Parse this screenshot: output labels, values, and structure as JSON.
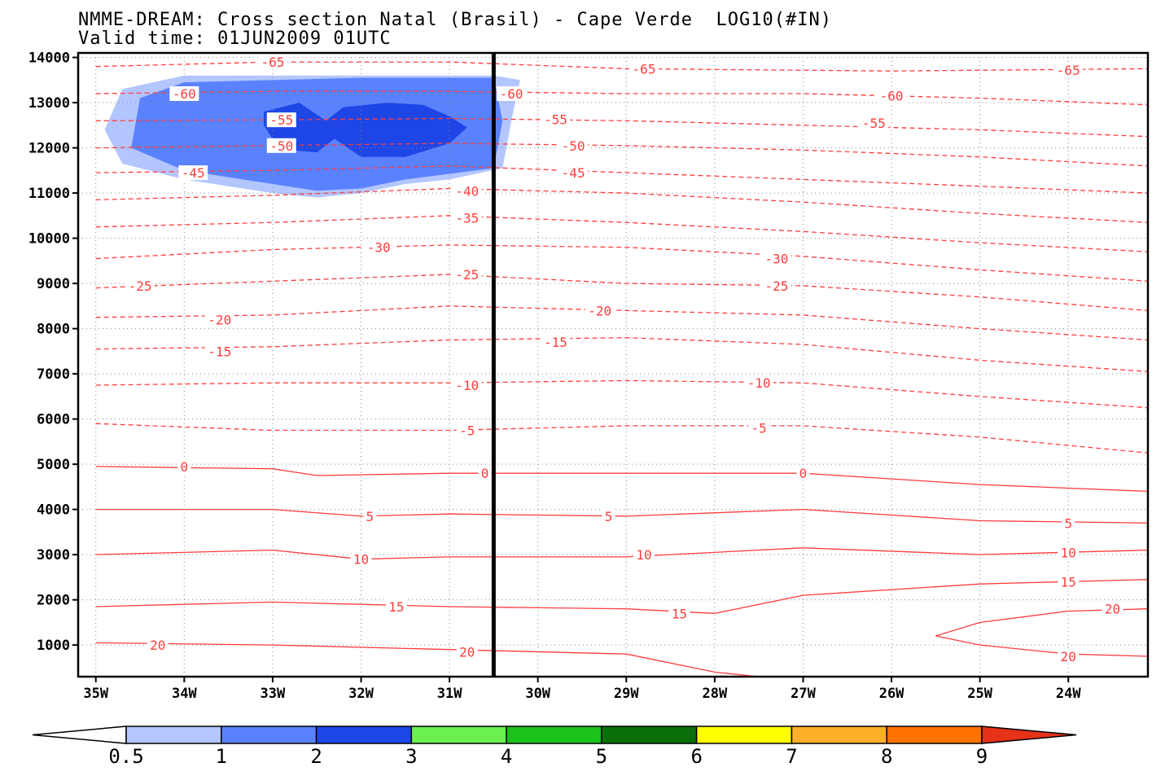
{
  "chart_data": {
    "type": "contour",
    "title_lines": [
      "NMME-DREAM: Cross section Natal (Brasil) - Cape Verde  LOG10(#IN)",
      "Valid time: 01JUN2009 01UTC"
    ],
    "x_tick_labels": [
      "35W",
      "34W",
      "33W",
      "32W",
      "31W",
      "30W",
      "29W",
      "28W",
      "27W",
      "26W",
      "25W",
      "24W"
    ],
    "x_ticks_lon": [
      -35,
      -34,
      -33,
      -32,
      -31,
      -30,
      -29,
      -28,
      -27,
      -26,
      -25,
      -24
    ],
    "xlim_lon": [
      -35.2,
      -23.1
    ],
    "y_ticks": [
      1000,
      2000,
      3000,
      4000,
      5000,
      6000,
      7000,
      8000,
      9000,
      10000,
      11000,
      12000,
      13000,
      14000
    ],
    "ylim": [
      300,
      14100
    ],
    "grid": true,
    "vertical_marker_lon": -30.5,
    "temperature_isolines": [
      {
        "level": -65,
        "points": [
          [
            -35,
            13800
          ],
          [
            -33,
            13900
          ],
          [
            -31,
            13900
          ],
          [
            -29,
            13750
          ],
          [
            -26,
            13700
          ],
          [
            -23.1,
            13750
          ]
        ],
        "labels": [
          [
            -33.0,
            13900
          ],
          [
            -28.8,
            13750
          ],
          [
            -24.0,
            13720
          ]
        ]
      },
      {
        "level": -60,
        "points": [
          [
            -35,
            13200
          ],
          [
            -33,
            13250
          ],
          [
            -31,
            13250
          ],
          [
            -29,
            13200
          ],
          [
            -27,
            13200
          ],
          [
            -25,
            13100
          ],
          [
            -23.1,
            12950
          ]
        ],
        "labels": [
          [
            -34.0,
            13200
          ],
          [
            -30.3,
            13200
          ],
          [
            -26.0,
            13150
          ]
        ]
      },
      {
        "level": -55,
        "points": [
          [
            -35,
            12600
          ],
          [
            -33,
            12620
          ],
          [
            -31,
            12650
          ],
          [
            -29,
            12600
          ],
          [
            -27,
            12500
          ],
          [
            -25,
            12400
          ],
          [
            -23.1,
            12250
          ]
        ],
        "labels": [
          [
            -32.9,
            12620
          ],
          [
            -29.8,
            12630
          ],
          [
            -26.2,
            12550
          ]
        ]
      },
      {
        "level": -50,
        "points": [
          [
            -35,
            12000
          ],
          [
            -33,
            12050
          ],
          [
            -31,
            12100
          ],
          [
            -29,
            12050
          ],
          [
            -27,
            11950
          ],
          [
            -25,
            11800
          ],
          [
            -23.1,
            11600
          ]
        ],
        "labels": [
          [
            -32.9,
            12050
          ],
          [
            -29.6,
            12050
          ]
        ]
      },
      {
        "level": -45,
        "points": [
          [
            -35,
            11450
          ],
          [
            -33,
            11500
          ],
          [
            -31,
            11600
          ],
          [
            -29,
            11450
          ],
          [
            -27,
            11300
          ],
          [
            -25,
            11150
          ],
          [
            -23.1,
            11000
          ]
        ],
        "labels": [
          [
            -33.9,
            11450
          ],
          [
            -29.6,
            11450
          ]
        ]
      },
      {
        "level": -40,
        "points": [
          [
            -35,
            10850
          ],
          [
            -33,
            10950
          ],
          [
            -31,
            11100
          ],
          [
            -29,
            11000
          ],
          [
            -27,
            10800
          ],
          [
            -25,
            10550
          ],
          [
            -23.1,
            10350
          ]
        ],
        "labels": [
          [
            -30.8,
            11050
          ]
        ]
      },
      {
        "level": -35,
        "points": [
          [
            -35,
            10250
          ],
          [
            -33,
            10350
          ],
          [
            -31,
            10500
          ],
          [
            -29,
            10350
          ],
          [
            -27,
            10150
          ],
          [
            -25,
            9900
          ],
          [
            -23.1,
            9700
          ]
        ],
        "labels": [
          [
            -30.8,
            10450
          ]
        ]
      },
      {
        "level": -30,
        "points": [
          [
            -35,
            9550
          ],
          [
            -33,
            9750
          ],
          [
            -31,
            9850
          ],
          [
            -29,
            9800
          ],
          [
            -27,
            9600
          ],
          [
            -25,
            9300
          ],
          [
            -23.1,
            9050
          ]
        ],
        "labels": [
          [
            -31.8,
            9800
          ],
          [
            -27.3,
            9550
          ]
        ]
      },
      {
        "level": -25,
        "points": [
          [
            -35,
            8900
          ],
          [
            -33,
            9050
          ],
          [
            -31,
            9200
          ],
          [
            -29,
            9000
          ],
          [
            -27,
            8950
          ],
          [
            -25,
            8700
          ],
          [
            -23.1,
            8400
          ]
        ],
        "labels": [
          [
            -34.5,
            8950
          ],
          [
            -30.8,
            9200
          ],
          [
            -27.3,
            8950
          ]
        ]
      },
      {
        "level": -20,
        "points": [
          [
            -35,
            8250
          ],
          [
            -33,
            8300
          ],
          [
            -31,
            8500
          ],
          [
            -29,
            8400
          ],
          [
            -27,
            8300
          ],
          [
            -25,
            8000
          ],
          [
            -23.1,
            7750
          ]
        ],
        "labels": [
          [
            -33.6,
            8200
          ],
          [
            -29.3,
            8400
          ]
        ]
      },
      {
        "level": -15,
        "points": [
          [
            -35,
            7550
          ],
          [
            -33,
            7600
          ],
          [
            -31,
            7750
          ],
          [
            -29,
            7800
          ],
          [
            -27,
            7650
          ],
          [
            -25,
            7300
          ],
          [
            -23.1,
            7050
          ]
        ],
        "labels": [
          [
            -33.6,
            7500
          ],
          [
            -29.8,
            7700
          ]
        ]
      },
      {
        "level": -10,
        "points": [
          [
            -35,
            6750
          ],
          [
            -33,
            6800
          ],
          [
            -31,
            6800
          ],
          [
            -29,
            6850
          ],
          [
            -27,
            6800
          ],
          [
            -25,
            6500
          ],
          [
            -23.1,
            6250
          ]
        ],
        "labels": [
          [
            -30.8,
            6750
          ],
          [
            -27.5,
            6800
          ]
        ]
      },
      {
        "level": -5,
        "points": [
          [
            -35,
            5900
          ],
          [
            -33,
            5750
          ],
          [
            -31,
            5750
          ],
          [
            -29,
            5850
          ],
          [
            -27,
            5850
          ],
          [
            -25,
            5600
          ],
          [
            -23.1,
            5250
          ]
        ],
        "labels": [
          [
            -30.8,
            5750
          ],
          [
            -27.5,
            5800
          ]
        ]
      },
      {
        "level": 0,
        "points": [
          [
            -35,
            4950
          ],
          [
            -33,
            4900
          ],
          [
            -32.5,
            4750
          ],
          [
            -31,
            4800
          ],
          [
            -29,
            4800
          ],
          [
            -27,
            4800
          ],
          [
            -25,
            4550
          ],
          [
            -23.1,
            4400
          ]
        ],
        "labels": [
          [
            -34.0,
            4950
          ],
          [
            -30.6,
            4800
          ],
          [
            -27.0,
            4800
          ]
        ]
      },
      {
        "level": 5,
        "points": [
          [
            -35,
            4000
          ],
          [
            -33,
            4000
          ],
          [
            -32,
            3850
          ],
          [
            -31,
            3900
          ],
          [
            -29,
            3850
          ],
          [
            -27,
            4000
          ],
          [
            -25,
            3750
          ],
          [
            -23.1,
            3700
          ]
        ],
        "labels": [
          [
            -31.9,
            3850
          ],
          [
            -29.2,
            3850
          ],
          [
            -24.0,
            3700
          ]
        ]
      },
      {
        "level": 10,
        "points": [
          [
            -35,
            3000
          ],
          [
            -33,
            3100
          ],
          [
            -32,
            2900
          ],
          [
            -31,
            2950
          ],
          [
            -29,
            2950
          ],
          [
            -27,
            3150
          ],
          [
            -25,
            3000
          ],
          [
            -23.1,
            3100
          ]
        ],
        "labels": [
          [
            -32.0,
            2900
          ],
          [
            -28.8,
            3000
          ],
          [
            -24.0,
            3050
          ]
        ]
      },
      {
        "level": 15,
        "points": [
          [
            -35,
            1850
          ],
          [
            -33,
            1950
          ],
          [
            -32,
            1900
          ],
          [
            -31,
            1850
          ],
          [
            -29,
            1800
          ],
          [
            -28,
            1700
          ],
          [
            -27,
            2100
          ],
          [
            -25,
            2350
          ],
          [
            -23.1,
            2450
          ]
        ],
        "labels": [
          [
            -31.6,
            1850
          ],
          [
            -28.4,
            1700
          ],
          [
            -24.0,
            2400
          ]
        ]
      },
      {
        "level": 20,
        "points": [
          [
            -35,
            1050
          ],
          [
            -33,
            1000
          ],
          [
            -31,
            900
          ],
          [
            -29,
            800
          ],
          [
            -28,
            400
          ],
          [
            -27.5,
            300
          ]
        ],
        "labels": [
          [
            -34.3,
            1000
          ],
          [
            -30.8,
            850
          ]
        ]
      },
      {
        "level": 20,
        "points": [
          [
            -23.1,
            1800
          ],
          [
            -24,
            1750
          ],
          [
            -25,
            1500
          ],
          [
            -25.5,
            1200
          ],
          [
            -25,
            1000
          ],
          [
            -24,
            800
          ],
          [
            -23.1,
            750
          ]
        ],
        "labels": [
          [
            -23.5,
            1800
          ],
          [
            -24.0,
            750
          ]
        ]
      }
    ],
    "shaded_field": {
      "legend_bounds": [
        "0.5",
        "1",
        "2",
        "3",
        "4",
        "5",
        "6",
        "7",
        "8",
        "9"
      ],
      "legend_colors": [
        "#b4c6ff",
        "#5a82ff",
        "#1e46e6",
        "#6cf04e",
        "#1cc21c",
        "#0a6e0a",
        "#ffff00",
        "#ffb02a",
        "#ff7200",
        "#e63219"
      ],
      "regions": [
        {
          "range": [
            0.5,
            1
          ],
          "outline": [
            [
              -34.7,
              13300
            ],
            [
              -34.0,
              13600
            ],
            [
              -32.0,
              13600
            ],
            [
              -30.5,
              13600
            ],
            [
              -30.2,
              13500
            ],
            [
              -30.3,
              12600
            ],
            [
              -30.4,
              11550
            ],
            [
              -31.0,
              11300
            ],
            [
              -31.5,
              11200
            ],
            [
              -32.0,
              11000
            ],
            [
              -32.5,
              10900
            ],
            [
              -33.0,
              11000
            ],
            [
              -34.0,
              11300
            ],
            [
              -34.7,
              11650
            ],
            [
              -34.9,
              12400
            ]
          ]
        },
        {
          "range": [
            1,
            2
          ],
          "outline": [
            [
              -34.5,
              13100
            ],
            [
              -34.0,
              13450
            ],
            [
              -32.0,
              13550
            ],
            [
              -30.5,
              13550
            ],
            [
              -30.4,
              12600
            ],
            [
              -30.5,
              11550
            ],
            [
              -31.5,
              11300
            ],
            [
              -32.0,
              11100
            ],
            [
              -32.5,
              11050
            ],
            [
              -33.0,
              11200
            ],
            [
              -34.0,
              11500
            ],
            [
              -34.6,
              12000
            ]
          ]
        },
        {
          "range": [
            2,
            3
          ],
          "outline": [
            [
              -33.1,
              12800
            ],
            [
              -32.7,
              13000
            ],
            [
              -32.4,
              12600
            ],
            [
              -32.2,
              12900
            ],
            [
              -31.7,
              13000
            ],
            [
              -31.3,
              12950
            ],
            [
              -31.0,
              12700
            ],
            [
              -30.8,
              12450
            ],
            [
              -31.0,
              12100
            ],
            [
              -31.5,
              11800
            ],
            [
              -32.0,
              11800
            ],
            [
              -32.3,
              12200
            ],
            [
              -32.5,
              11900
            ],
            [
              -32.8,
              11950
            ],
            [
              -33.0,
              12200
            ],
            [
              -33.1,
              12500
            ]
          ]
        }
      ]
    }
  }
}
